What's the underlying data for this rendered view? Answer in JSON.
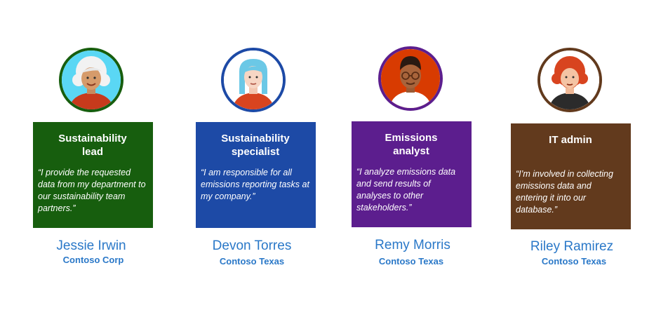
{
  "personas": [
    {
      "role": "Sustainability lead",
      "quote": "“I provide the requested data from my department to our sustainability team partners.”",
      "name": "Jessie Irwin",
      "org": "Contoso Corp",
      "card_color": "#175e0e",
      "ring_color": "#175e0e",
      "avatar_bg": "#5ad7f4",
      "icon": "woman-white-hair-avatar-icon"
    },
    {
      "role": "Sustainability specialist",
      "quote": "“I am responsible for all emissions reporting tasks at my company.”",
      "name": "Devon Torres",
      "org": "Contoso Texas",
      "card_color": "#1d4aa6",
      "ring_color": "#1d4aa6",
      "avatar_bg": "#ffffff",
      "icon": "person-blue-hair-avatar-icon"
    },
    {
      "role": "Emissions analyst",
      "quote": "“I analyze emissions data and send results of analyses to other stakeholders.”",
      "name": "Remy Morris",
      "org": "Contoso Texas",
      "card_color": "#5c1e8e",
      "ring_color": "#5c1e8e",
      "avatar_bg": "#d83b01",
      "icon": "man-glasses-avatar-icon"
    },
    {
      "role": "IT admin",
      "quote": "“I’m involved in collecting emissions data and entering it into our database.”",
      "name": "Riley Ramirez",
      "org": "Contoso Texas",
      "card_color": "#623a1d",
      "ring_color": "#623a1d",
      "avatar_bg": "#ffffff",
      "icon": "man-red-curly-hair-avatar-icon"
    }
  ]
}
